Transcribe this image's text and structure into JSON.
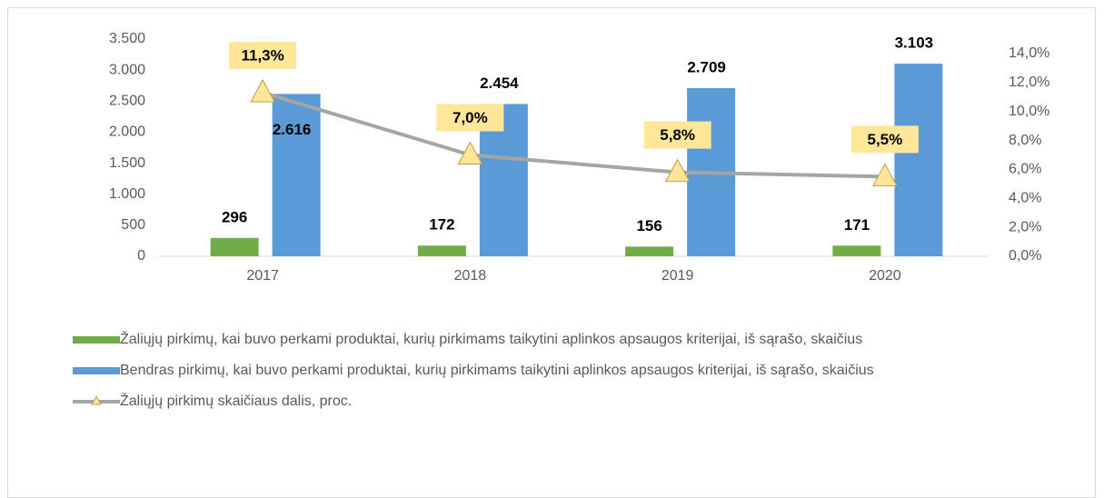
{
  "chart_data": {
    "type": "bar",
    "categories": [
      "2017",
      "2018",
      "2019",
      "2020"
    ],
    "series": [
      {
        "name": "Žaliųjų pirkimų, kai buvo perkami produktai, kurių pirkimams taikytini aplinkos apsaugos kriterijai, iš sąrašo, skaičius",
        "color": "#70ad47",
        "values": [
          296,
          172,
          156,
          171
        ]
      },
      {
        "name": "Bendras pirkimų, kai buvo perkami produktai, kurių pirkimams taikytini aplinkos apsaugos kriterijai, iš sąrašo, skaičius",
        "color": "#5b9bd5",
        "values": [
          2616,
          2454,
          2709,
          3103
        ],
        "value_labels": [
          "2.616",
          "2.454",
          "2.709",
          "3.103"
        ]
      },
      {
        "name": "Žaliųjų pirkimų skaičiaus dalis, proc.",
        "color": "#a5a5a5",
        "type": "line",
        "axis": "y2",
        "values": [
          11.3,
          7.0,
          5.8,
          5.5
        ],
        "value_labels": [
          "11,3%",
          "7,0%",
          "5,8%",
          "5,5%"
        ]
      }
    ],
    "ylim": [
      0,
      3500
    ],
    "yticks": [
      0,
      500,
      {
        "value": 1000,
        "label": "1.000"
      },
      {
        "value": 1500,
        "label": "1.500"
      },
      {
        "value": 2000,
        "label": "2.000"
      },
      {
        "value": 2500,
        "label": "2.500"
      },
      {
        "value": 3000,
        "label": "3.000"
      },
      {
        "value": 3500,
        "label": "3.500"
      }
    ],
    "y2lim": [
      0,
      15
    ],
    "y2ticks": [
      {
        "value": 0,
        "label": "0,0%"
      },
      {
        "value": 2,
        "label": "2,0%"
      },
      {
        "value": 4,
        "label": "4,0%"
      },
      {
        "value": 6,
        "label": "6,0%"
      },
      {
        "value": 8,
        "label": "8,0%"
      },
      {
        "value": 10,
        "label": "10,0%"
      },
      {
        "value": 12,
        "label": "12,0%"
      },
      {
        "value": 14,
        "label": "14,0%"
      }
    ],
    "grid": false
  }
}
